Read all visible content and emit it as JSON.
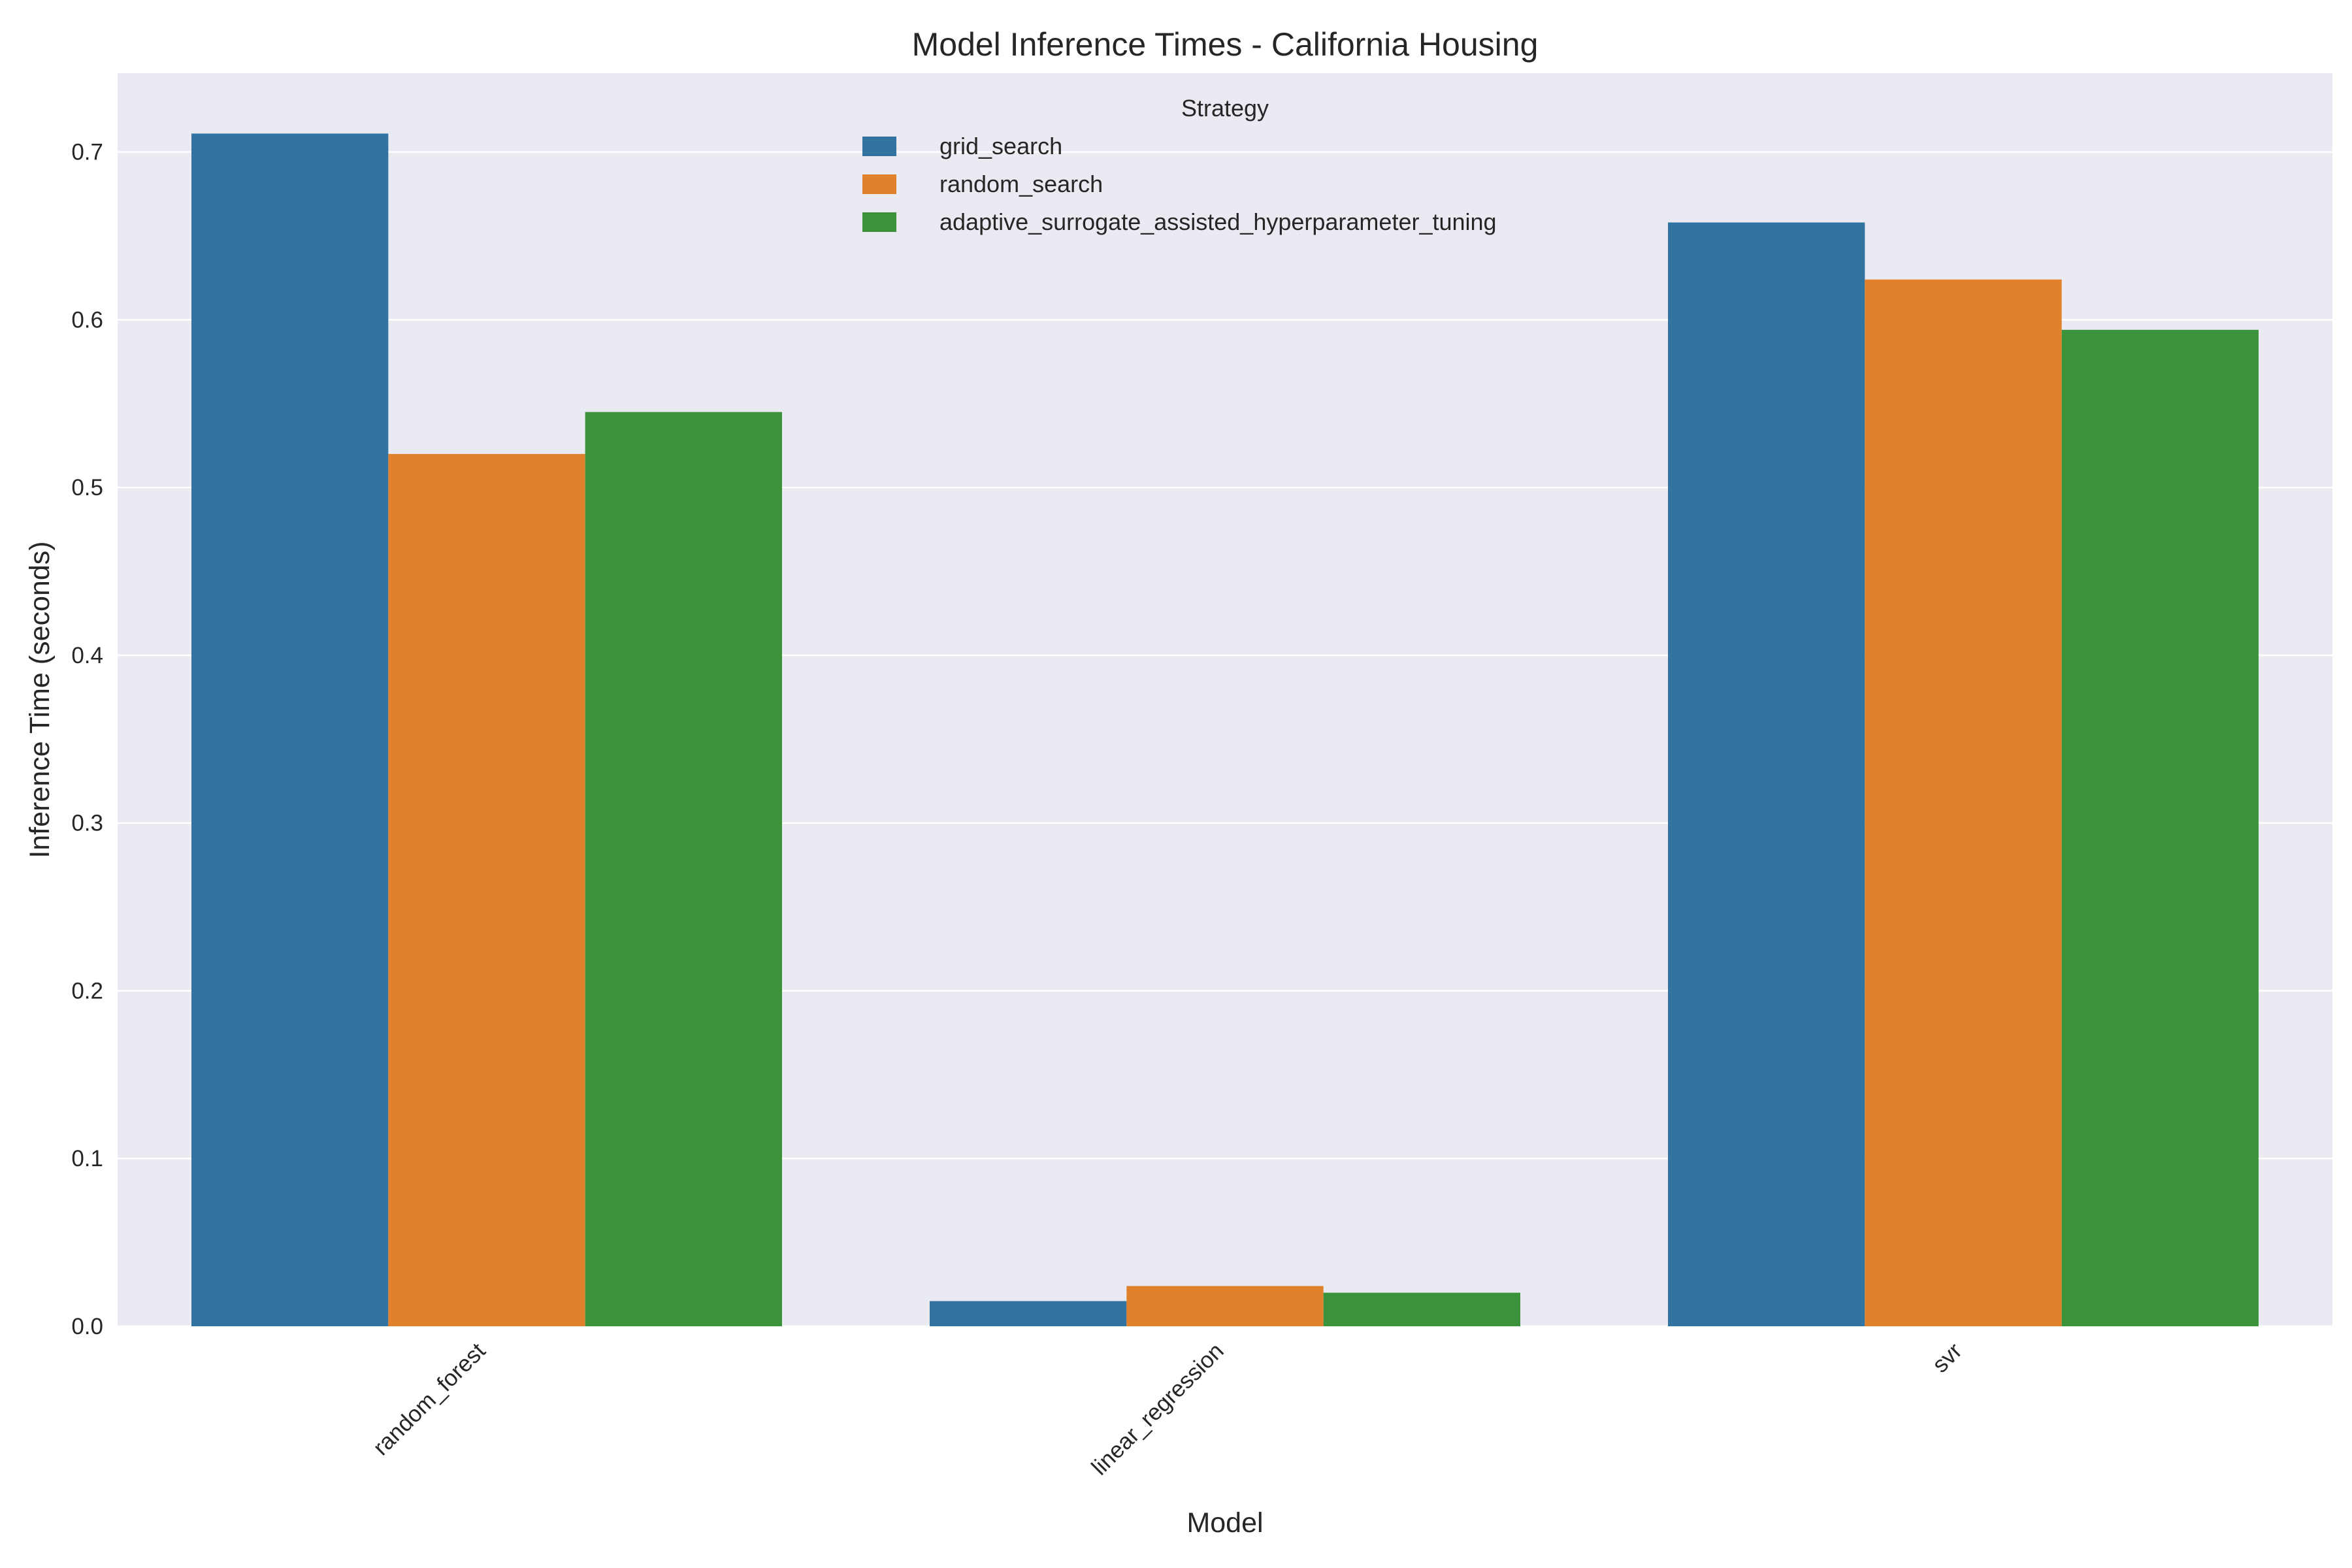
{
  "chart_data": {
    "type": "bar",
    "title": "Model Inference Times - California Housing",
    "xlabel": "Model",
    "ylabel": "Inference Time (seconds)",
    "categories": [
      "random_forest",
      "linear_regression",
      "svr"
    ],
    "series": [
      {
        "name": "grid_search",
        "color": "#3274a1",
        "values": [
          0.711,
          0.015,
          0.658
        ]
      },
      {
        "name": "random_search",
        "color": "#e1812c",
        "values": [
          0.52,
          0.024,
          0.624
        ]
      },
      {
        "name": "adaptive_surrogate_assisted_hyperparameter_tuning",
        "color": "#3a923a",
        "values": [
          0.545,
          0.02,
          0.594
        ]
      }
    ],
    "ylim": [
      0,
      0.747
    ],
    "yticks": [
      "0.0",
      "0.1",
      "0.2",
      "0.3",
      "0.4",
      "0.5",
      "0.6",
      "0.7"
    ],
    "legend": {
      "title": "Strategy",
      "placement": "top-center"
    },
    "grid": true,
    "plot_background": "#eaeaf2",
    "grid_color": "#ffffff"
  }
}
